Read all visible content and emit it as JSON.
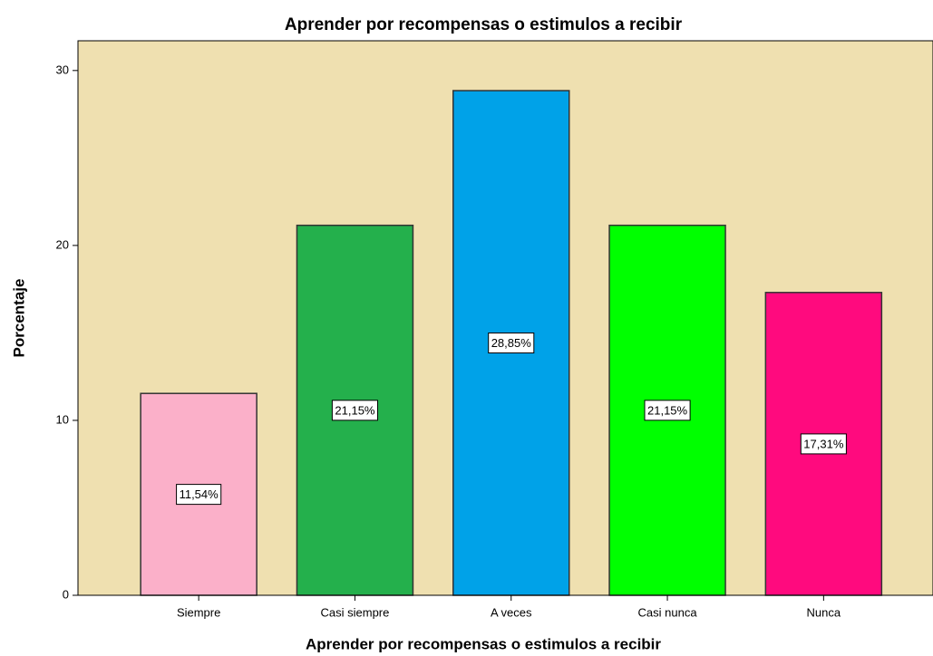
{
  "chart_data": {
    "type": "bar",
    "title": "Aprender por recompensas o estimulos a recibir",
    "x_label": "Aprender por recompensas o estimulos a recibir",
    "y_label": "Porcentaje",
    "categories": [
      "Siempre",
      "Casi siempre",
      "A veces",
      "Casi nunca",
      "Nunca"
    ],
    "values": [
      11.54,
      21.15,
      28.85,
      21.15,
      17.31
    ],
    "value_labels": [
      "11,54%",
      "21,15%",
      "28,85%",
      "21,15%",
      "17,31%"
    ],
    "colors": [
      "#fbb0c9",
      "#24b04c",
      "#00a2e8",
      "#00ff00",
      "#ff0a7e"
    ],
    "background": "#efe0b0",
    "ylim": [
      0,
      31.7
    ],
    "yticks": [
      0,
      10,
      20,
      30
    ],
    "grid": false
  }
}
